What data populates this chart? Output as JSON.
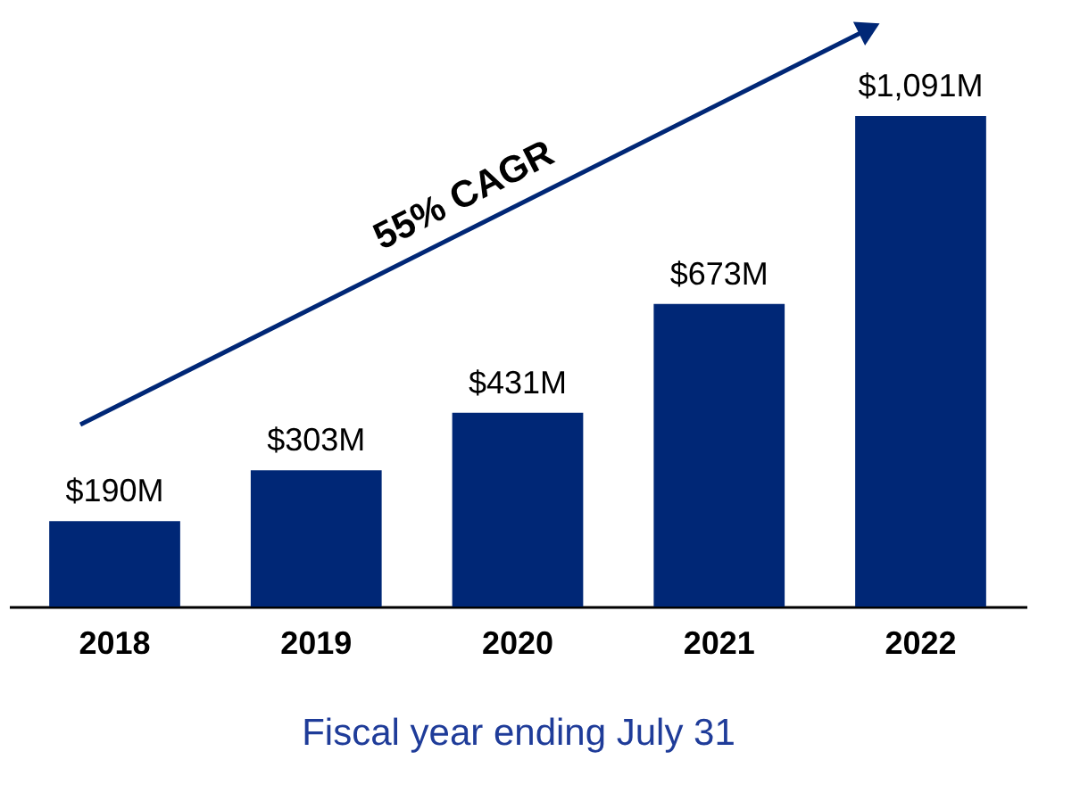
{
  "chart_data": {
    "type": "bar",
    "xlabel": "Fiscal year ending July 31",
    "categories": [
      "2018",
      "2019",
      "2020",
      "2021",
      "2022"
    ],
    "values": [
      190,
      303,
      431,
      673,
      1091
    ],
    "value_labels": [
      "$190M",
      "$303M",
      "$431M",
      "$673M",
      "$1,091M"
    ],
    "color": "#002776",
    "annotations": [
      "55% CAGR"
    ]
  }
}
